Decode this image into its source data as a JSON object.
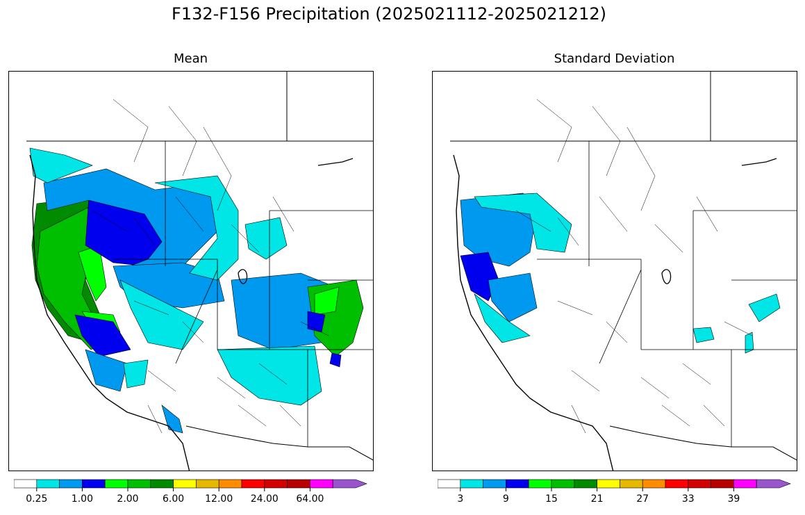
{
  "title": "F132-F156 Precipitation (2025021112-2025021212)",
  "panels": [
    {
      "title": "Mean",
      "colorbar": {
        "tick_labels": [
          "0.25",
          "1.00",
          "2.00",
          "6.00",
          "12.00",
          "24.00",
          "64.00"
        ],
        "colors": [
          "#ffffff",
          "#00e5e5",
          "#0099f0",
          "#0000ee",
          "#00ff00",
          "#00bf00",
          "#008b00",
          "#ffff00",
          "#e6b800",
          "#ff8c00",
          "#ff0000",
          "#d20000",
          "#b80000",
          "#ff00ff",
          "#9955cc"
        ]
      },
      "map_fill_levels": [
        "cyan",
        "light-blue",
        "blue",
        "green",
        "bright-green",
        "dark-green"
      ]
    },
    {
      "title": "Standard Deviation",
      "colorbar": {
        "tick_labels": [
          "3",
          "9",
          "15",
          "21",
          "27",
          "33",
          "39"
        ],
        "colors": [
          "#ffffff",
          "#00e5e5",
          "#0099f0",
          "#0000ee",
          "#00ff00",
          "#00bf00",
          "#008b00",
          "#ffff00",
          "#e6b800",
          "#ff8c00",
          "#ff0000",
          "#d20000",
          "#b80000",
          "#ff00ff",
          "#9955cc"
        ]
      },
      "map_fill_levels": [
        "cyan",
        "light-blue",
        "blue"
      ]
    }
  ],
  "colors": {
    "cyan": "#00e5e5",
    "light_blue": "#0099f0",
    "blue": "#0000ee",
    "green": "#00bf00",
    "bright_green": "#00ff00",
    "dark_green": "#008b00"
  }
}
